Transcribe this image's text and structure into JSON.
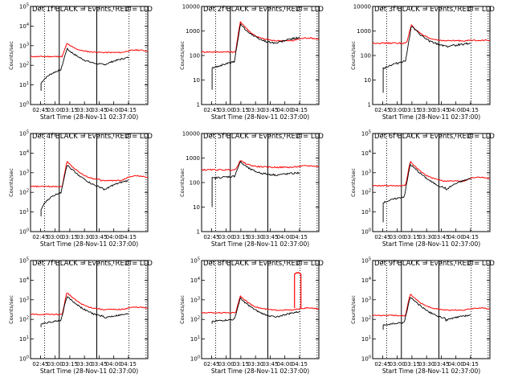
{
  "chart_data": {
    "type": "line",
    "x_tick_labels": [
      "02:45",
      "03:00",
      "03:15",
      "03:30",
      "03:45",
      "04:00",
      "04:15"
    ],
    "x_label": "Start Time (28-Nov-11 02:37:00)",
    "y_label": "Counts/sec",
    "series_colors": {
      "events": "#000000",
      "lld": "#ff0000"
    },
    "panels": [
      {
        "title": "Det 1f BLACK = Events, RED = LLD",
        "y_tick_labels": [
          "10^5",
          "10^4",
          "10^3",
          "10^2",
          "10^1",
          "10^0"
        ],
        "events": {
          "start": [
            5,
            12
          ],
          "jump": 60,
          "peak": 700,
          "peak_at": 0.31,
          "trough": 100,
          "end": 250
        },
        "lld": {
          "base": 280,
          "peak": 1300,
          "peak_at": 0.31,
          "trough": 450,
          "hump": 600
        }
      },
      {
        "title": "Det 2f BLACK = Events, RED = LLD",
        "y_tick_labels": [
          "10000",
          "1000",
          "100",
          "10",
          "1"
        ],
        "events": {
          "start": [
            4,
            30
          ],
          "jump": 55,
          "peak": 1900,
          "peak_at": 0.33,
          "trough": 300,
          "end": 550
        },
        "lld": {
          "base": 140,
          "peak": 2500,
          "peak_at": 0.33,
          "trough": 400,
          "hump": 520
        }
      },
      {
        "title": "Det 3f BLACK = Events, RED = LLD",
        "y_tick_labels": [
          "10000",
          "1000",
          "100",
          "10",
          "1"
        ],
        "events": {
          "start": [
            3,
            30
          ],
          "jump": 60,
          "peak": 1600,
          "peak_at": 0.33,
          "trough": 230,
          "end": 320
        },
        "lld": {
          "base": 320,
          "peak": 1800,
          "peak_at": 0.33,
          "trough": 400,
          "hump": 420
        }
      },
      {
        "title": "Det 4f BLACK = Events, RED = LLD",
        "y_tick_labels": [
          "10^5",
          "10^4",
          "10^3",
          "10^2",
          "10^1",
          "10^0"
        ],
        "events": {
          "start": [
            6,
            12
          ],
          "jump": 100,
          "peak": 2500,
          "peak_at": 0.31,
          "trough": 120,
          "end": 400
        },
        "lld": {
          "base": 200,
          "peak": 3800,
          "peak_at": 0.31,
          "trough": 400,
          "hump": 700
        }
      },
      {
        "title": "Det 5f BLACK = Events, RED = LLD",
        "y_tick_labels": [
          "10000",
          "1000",
          "100",
          "10",
          "1"
        ],
        "events": {
          "start": [
            10,
            150
          ],
          "jump": 180,
          "peak": 700,
          "peak_at": 0.33,
          "trough": 200,
          "end": 250
        },
        "lld": {
          "base": 330,
          "peak": 800,
          "peak_at": 0.33,
          "trough": 420,
          "hump": 480
        }
      },
      {
        "title": "Det 6f BLACK = Events, RED = LLD",
        "y_tick_labels": [
          "10^5",
          "10^4",
          "10^3",
          "10^2",
          "10^1",
          "10^0"
        ],
        "events": {
          "start": [
            3,
            30
          ],
          "jump": 60,
          "peak": 2700,
          "peak_at": 0.32,
          "trough": 120,
          "end": 500
        },
        "lld": {
          "base": 220,
          "peak": 3700,
          "peak_at": 0.32,
          "trough": 380,
          "hump": 600
        }
      },
      {
        "title": "Det 7f BLACK = Events, RED = LLD",
        "y_tick_labels": [
          "10^5",
          "10^4",
          "10^3",
          "10^2",
          "10^1",
          "10^0"
        ],
        "events": {
          "start": [
            40,
            60
          ],
          "jump": 90,
          "peak": 1500,
          "peak_at": 0.31,
          "trough": 120,
          "end": 190
        },
        "lld": {
          "base": 180,
          "peak": 2400,
          "peak_at": 0.31,
          "trough": 320,
          "hump": 420
        }
      },
      {
        "title": "Det 8f BLACK = Events, RED = LLD",
        "y_tick_labels": [
          "10^5",
          "10^4",
          "10^3",
          "10^2",
          "10^1",
          "10^0"
        ],
        "events": {
          "start": [
            60,
            80
          ],
          "jump": 100,
          "peak": 1200,
          "peak_at": 0.33,
          "trough": 120,
          "end": 250
        },
        "lld": {
          "base": 220,
          "peak": 1600,
          "peak_at": 0.33,
          "trough": 300,
          "hump": 380,
          "spike": 20000
        }
      },
      {
        "title": "Det 9f BLACK = Events, RED = LLD",
        "y_tick_labels": [
          "10^5",
          "10^4",
          "10^3",
          "10^2",
          "10^1",
          "10^0"
        ],
        "events": {
          "start": [
            30,
            50
          ],
          "jump": 70,
          "peak": 1400,
          "peak_at": 0.32,
          "trough": 90,
          "end": 170
        },
        "lld": {
          "base": 160,
          "peak": 2000,
          "peak_at": 0.32,
          "trough": 300,
          "hump": 380
        }
      }
    ]
  }
}
